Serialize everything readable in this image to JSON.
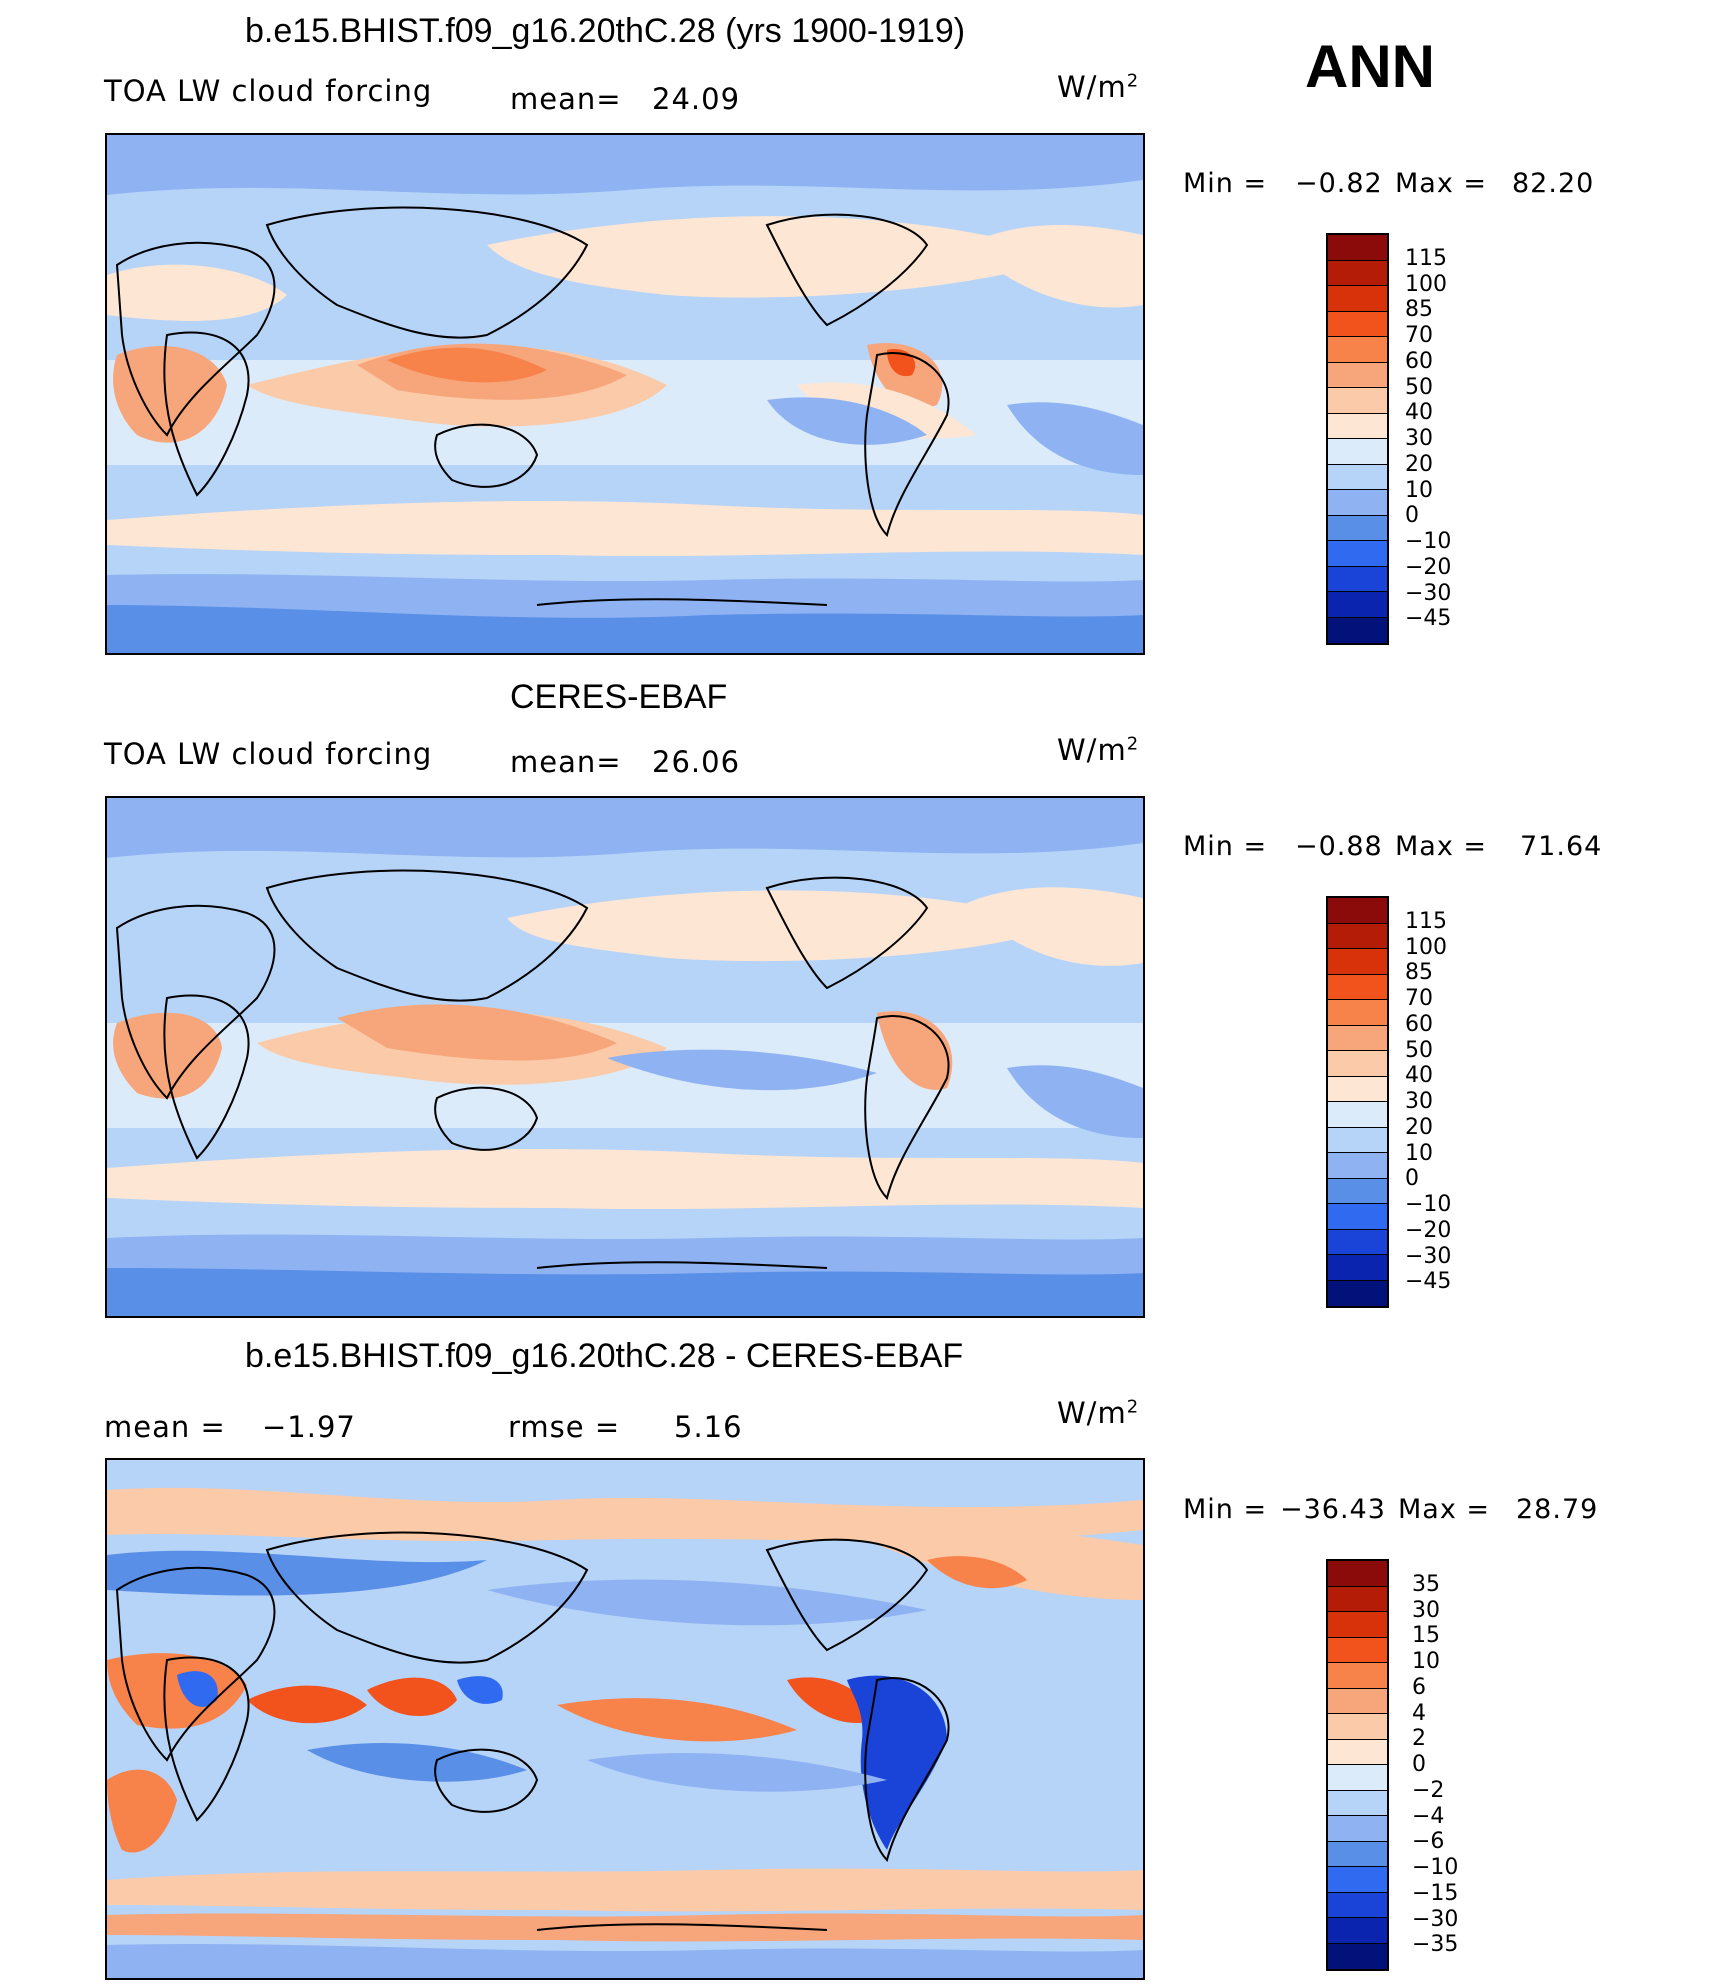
{
  "season": "ANN",
  "units": "W/m",
  "units_sup": "2",
  "panels": [
    {
      "title": "b.e15.BHIST.f09_g16.20thC.28 (yrs 1900-1919)",
      "left_label": "TOA LW cloud forcing",
      "center_label": "mean=",
      "center_value": "24.09",
      "min_label": "Min =",
      "min_value": "−0.82",
      "max_label": "Max =",
      "max_value": "82.20",
      "colorbar": {
        "labels": [
          "115",
          "100",
          "85",
          "70",
          "60",
          "50",
          "40",
          "30",
          "20",
          "10",
          "0",
          "−10",
          "−20",
          "−30",
          "−45"
        ],
        "colors": [
          "#8b0a0a",
          "#b51c08",
          "#d8320b",
          "#f2531c",
          "#f7824a",
          "#f7a57a",
          "#fbcaa8",
          "#fde6d4",
          "#dcebfa",
          "#b6d3f8",
          "#8fb3f2",
          "#5a8fe8",
          "#2f6af0",
          "#1a43d8",
          "#0b24b0",
          "#03127a"
        ]
      }
    },
    {
      "title": "CERES-EBAF",
      "left_label": "TOA LW cloud forcing",
      "center_label": "mean=",
      "center_value": "26.06",
      "min_label": "Min =",
      "min_value": "−0.88",
      "max_label": "Max =",
      "max_value": "71.64",
      "colorbar": {
        "labels": [
          "115",
          "100",
          "85",
          "70",
          "60",
          "50",
          "40",
          "30",
          "20",
          "10",
          "0",
          "−10",
          "−20",
          "−30",
          "−45"
        ],
        "colors": [
          "#8b0a0a",
          "#b51c08",
          "#d8320b",
          "#f2531c",
          "#f7824a",
          "#f7a57a",
          "#fbcaa8",
          "#fde6d4",
          "#dcebfa",
          "#b6d3f8",
          "#8fb3f2",
          "#5a8fe8",
          "#2f6af0",
          "#1a43d8",
          "#0b24b0",
          "#03127a"
        ]
      }
    },
    {
      "title": "b.e15.BHIST.f09_g16.20thC.28 - CERES-EBAF",
      "left_label": "mean =",
      "left_value": "−1.97",
      "center_label": "rmse =",
      "center_value": "5.16",
      "min_label": "Min =",
      "min_value": "−36.43",
      "max_label": "Max =",
      "max_value": "28.79",
      "colorbar": {
        "labels": [
          "35",
          "30",
          "15",
          "10",
          "6",
          "4",
          "2",
          "0",
          "−2",
          "−4",
          "−6",
          "−10",
          "−15",
          "−30",
          "−35"
        ],
        "colors": [
          "#8b0a0a",
          "#b51c08",
          "#d8320b",
          "#f2531c",
          "#f7824a",
          "#f7a57a",
          "#fbcaa8",
          "#fde6d4",
          "#dcebfa",
          "#b6d3f8",
          "#8fb3f2",
          "#5a8fe8",
          "#2f6af0",
          "#1a43d8",
          "#0b24b0",
          "#03127a"
        ]
      }
    }
  ]
}
